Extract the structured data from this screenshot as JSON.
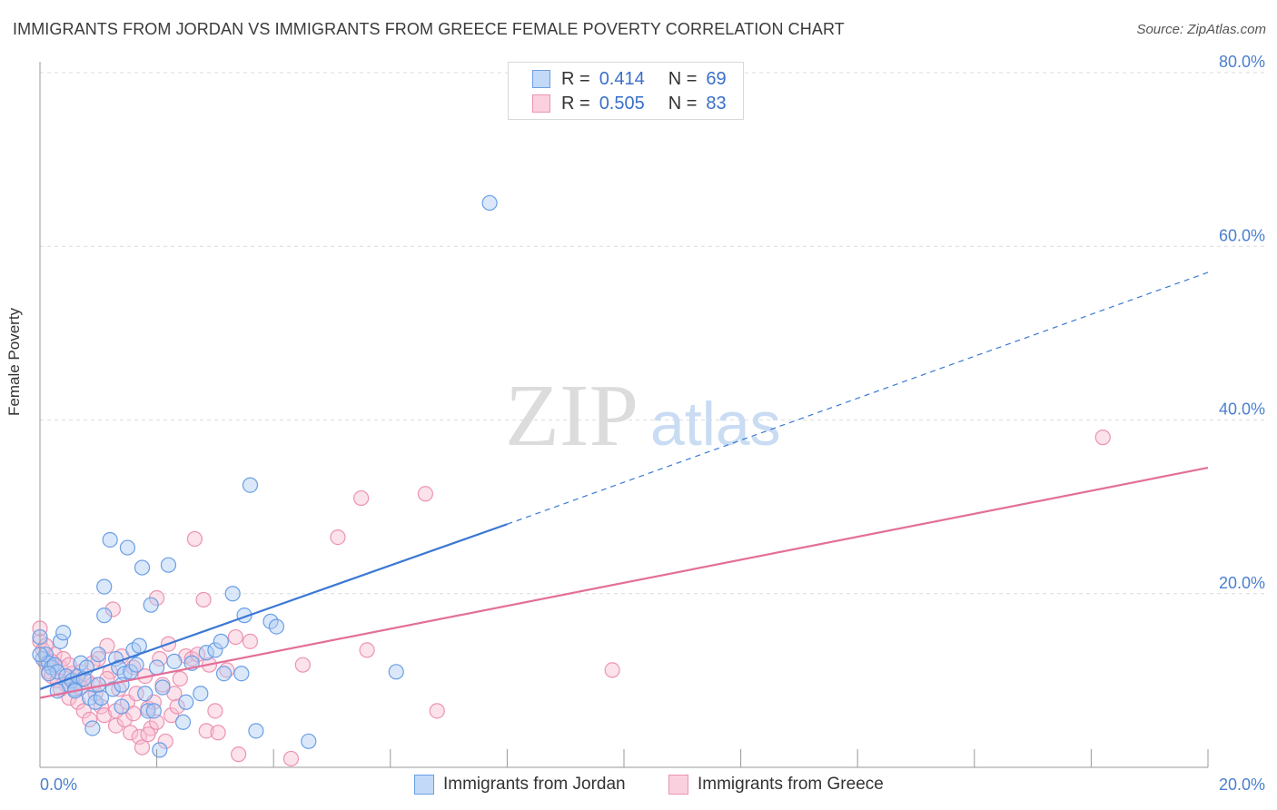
{
  "title": "IMMIGRANTS FROM JORDAN VS IMMIGRANTS FROM GREECE FEMALE POVERTY CORRELATION CHART",
  "source": "Source: ZipAtlas.com",
  "watermark": {
    "zip": "ZIP",
    "atlas": "atlas"
  },
  "legend": {
    "rows": [
      {
        "r_label": "R =",
        "r_value": "0.414",
        "n_label": "N =",
        "n_value": "69"
      },
      {
        "r_label": "R =",
        "r_value": "0.505",
        "n_label": "N =",
        "n_value": "83"
      }
    ]
  },
  "bottom_legend": [
    "Immigrants from Jordan",
    "Immigrants from Greece"
  ],
  "colors": {
    "jordan_fill": "#aecbf5",
    "jordan_stroke": "#6a9ee6",
    "jordan_line": "#3a78d4",
    "greece_fill": "#f8bfd1",
    "greece_stroke": "#ec93b2",
    "greece_line": "#e36f99",
    "tick": "#4a7fd0",
    "grid": "#dcdcdc"
  },
  "chart_data": {
    "type": "scatter",
    "title": "IMMIGRANTS FROM JORDAN VS IMMIGRANTS FROM GREECE FEMALE POVERTY CORRELATION CHART",
    "xlabel": "",
    "ylabel": "Female Poverty",
    "xlim": [
      0,
      20
    ],
    "ylim": [
      0,
      80
    ],
    "x_tick_labels": [
      "0.0%",
      "20.0%"
    ],
    "y_tick_labels": [
      "20.0%",
      "40.0%",
      "60.0%",
      "80.0%"
    ],
    "y_ticks": [
      20,
      40,
      60,
      80
    ],
    "series": [
      {
        "name": "Immigrants from Jordan",
        "r": 0.414,
        "n": 69,
        "trend": {
          "x0": 0,
          "y0": 9.0,
          "x1": 8.0,
          "y1": 28.0,
          "dash_to_x": 20.0,
          "dash_to_y": 57.0
        },
        "points": [
          [
            0.0,
            15.0
          ],
          [
            0.05,
            12.5
          ],
          [
            0.1,
            13.0
          ],
          [
            0.15,
            12.0
          ],
          [
            0.2,
            11.5
          ],
          [
            0.25,
            11.8
          ],
          [
            0.3,
            11.0
          ],
          [
            0.35,
            14.5
          ],
          [
            0.4,
            15.5
          ],
          [
            0.45,
            10.5
          ],
          [
            0.5,
            9.5
          ],
          [
            0.55,
            10.0
          ],
          [
            0.6,
            9.0
          ],
          [
            0.65,
            10.5
          ],
          [
            0.7,
            12.0
          ],
          [
            0.75,
            10.2
          ],
          [
            0.8,
            11.5
          ],
          [
            0.85,
            8.0
          ],
          [
            0.9,
            4.5
          ],
          [
            0.95,
            7.5
          ],
          [
            1.0,
            13.0
          ],
          [
            1.05,
            8.0
          ],
          [
            1.1,
            17.5
          ],
          [
            1.1,
            20.8
          ],
          [
            1.2,
            26.2
          ],
          [
            1.25,
            9.0
          ],
          [
            1.3,
            12.5
          ],
          [
            1.35,
            11.5
          ],
          [
            1.4,
            7.0
          ],
          [
            1.45,
            10.8
          ],
          [
            1.5,
            25.3
          ],
          [
            1.55,
            11.0
          ],
          [
            1.6,
            13.5
          ],
          [
            1.65,
            11.8
          ],
          [
            1.7,
            14.0
          ],
          [
            1.75,
            23.0
          ],
          [
            1.8,
            8.5
          ],
          [
            1.85,
            6.5
          ],
          [
            1.9,
            18.7
          ],
          [
            1.95,
            6.5
          ],
          [
            2.0,
            11.5
          ],
          [
            2.05,
            2.0
          ],
          [
            2.1,
            9.2
          ],
          [
            2.2,
            23.3
          ],
          [
            2.3,
            12.2
          ],
          [
            2.45,
            5.2
          ],
          [
            2.5,
            7.5
          ],
          [
            2.6,
            12.0
          ],
          [
            2.75,
            8.5
          ],
          [
            2.85,
            13.2
          ],
          [
            3.0,
            13.5
          ],
          [
            3.1,
            14.5
          ],
          [
            3.15,
            10.8
          ],
          [
            3.3,
            20.0
          ],
          [
            3.45,
            10.8
          ],
          [
            3.5,
            17.5
          ],
          [
            3.6,
            32.5
          ],
          [
            3.7,
            4.2
          ],
          [
            3.95,
            16.8
          ],
          [
            4.05,
            16.2
          ],
          [
            4.6,
            3.0
          ],
          [
            6.1,
            11.0
          ],
          [
            7.7,
            65.0
          ],
          [
            0.0,
            13.0
          ],
          [
            0.15,
            10.8
          ],
          [
            0.6,
            8.8
          ],
          [
            1.0,
            9.5
          ],
          [
            0.3,
            8.8
          ],
          [
            1.4,
            9.5
          ]
        ]
      },
      {
        "name": "Immigrants from Greece",
        "r": 0.505,
        "n": 83,
        "trend": {
          "x0": 0,
          "y0": 8.0,
          "x1": 20.0,
          "y1": 34.5
        },
        "points": [
          [
            0.0,
            14.5
          ],
          [
            0.05,
            13.5
          ],
          [
            0.1,
            12.0
          ],
          [
            0.15,
            11.0
          ],
          [
            0.2,
            10.5
          ],
          [
            0.25,
            13.0
          ],
          [
            0.3,
            10.0
          ],
          [
            0.35,
            11.5
          ],
          [
            0.4,
            12.5
          ],
          [
            0.45,
            9.5
          ],
          [
            0.5,
            8.0
          ],
          [
            0.55,
            10.8
          ],
          [
            0.6,
            9.8
          ],
          [
            0.65,
            7.5
          ],
          [
            0.7,
            11.0
          ],
          [
            0.75,
            6.5
          ],
          [
            0.8,
            10.0
          ],
          [
            0.85,
            5.5
          ],
          [
            0.9,
            9.5
          ],
          [
            0.95,
            8.5
          ],
          [
            1.0,
            12.5
          ],
          [
            1.05,
            7.0
          ],
          [
            1.1,
            6.0
          ],
          [
            1.15,
            14.0
          ],
          [
            1.2,
            11.0
          ],
          [
            1.25,
            18.2
          ],
          [
            1.3,
            4.8
          ],
          [
            1.35,
            9.0
          ],
          [
            1.4,
            12.8
          ],
          [
            1.45,
            5.5
          ],
          [
            1.5,
            7.5
          ],
          [
            1.55,
            4.0
          ],
          [
            1.6,
            11.5
          ],
          [
            1.65,
            8.5
          ],
          [
            1.7,
            3.5
          ],
          [
            1.75,
            2.3
          ],
          [
            1.8,
            10.5
          ],
          [
            1.85,
            6.8
          ],
          [
            1.9,
            4.5
          ],
          [
            1.95,
            7.5
          ],
          [
            2.0,
            5.2
          ],
          [
            2.05,
            12.5
          ],
          [
            2.1,
            9.5
          ],
          [
            2.15,
            3.0
          ],
          [
            2.2,
            14.2
          ],
          [
            2.3,
            8.5
          ],
          [
            2.4,
            10.2
          ],
          [
            2.5,
            12.8
          ],
          [
            2.6,
            12.5
          ],
          [
            2.65,
            26.3
          ],
          [
            2.7,
            13.0
          ],
          [
            2.8,
            19.3
          ],
          [
            2.85,
            4.2
          ],
          [
            2.9,
            11.8
          ],
          [
            3.0,
            6.5
          ],
          [
            3.05,
            4.0
          ],
          [
            3.2,
            11.2
          ],
          [
            3.35,
            15.0
          ],
          [
            3.4,
            1.5
          ],
          [
            3.6,
            14.5
          ],
          [
            4.3,
            1.0
          ],
          [
            4.5,
            11.8
          ],
          [
            5.1,
            26.5
          ],
          [
            5.5,
            31.0
          ],
          [
            5.6,
            13.5
          ],
          [
            6.6,
            31.5
          ],
          [
            6.8,
            6.5
          ],
          [
            9.8,
            11.2
          ],
          [
            18.2,
            38.0
          ],
          [
            0.0,
            16.0
          ],
          [
            0.1,
            14.0
          ],
          [
            0.2,
            12.2
          ],
          [
            0.35,
            9.0
          ],
          [
            0.5,
            11.8
          ],
          [
            0.7,
            9.2
          ],
          [
            0.9,
            12.0
          ],
          [
            1.15,
            10.2
          ],
          [
            1.3,
            6.5
          ],
          [
            1.6,
            6.2
          ],
          [
            1.85,
            3.8
          ],
          [
            2.0,
            19.5
          ],
          [
            2.25,
            6.0
          ],
          [
            2.35,
            7.0
          ]
        ]
      }
    ]
  }
}
